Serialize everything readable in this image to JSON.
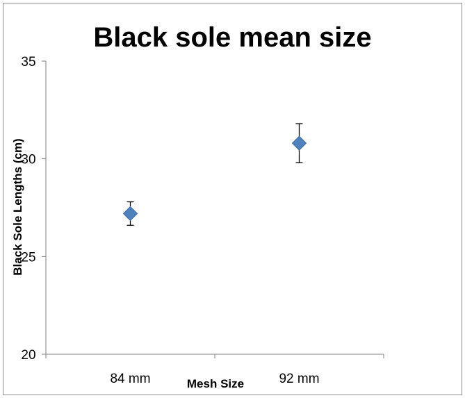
{
  "chart_data": {
    "type": "scatter",
    "title": "Black sole mean size",
    "xlabel": "Mesh Size",
    "ylabel": "Black Sole Lengths (cm)",
    "categories": [
      "84 mm",
      "92 mm"
    ],
    "y_axis_reversed": true,
    "ylim": [
      35,
      20
    ],
    "yticks": [
      35,
      30,
      25,
      20
    ],
    "ytick_labels": [
      "35",
      "30",
      "25",
      "20"
    ],
    "grid": false,
    "legend": "none",
    "marker": "diamond",
    "marker_color": "#4F81BD",
    "series": [
      {
        "values": [
          27.2,
          30.8
        ],
        "error_low": [
          26.6,
          29.8
        ],
        "error_high": [
          27.8,
          31.8
        ]
      }
    ]
  }
}
